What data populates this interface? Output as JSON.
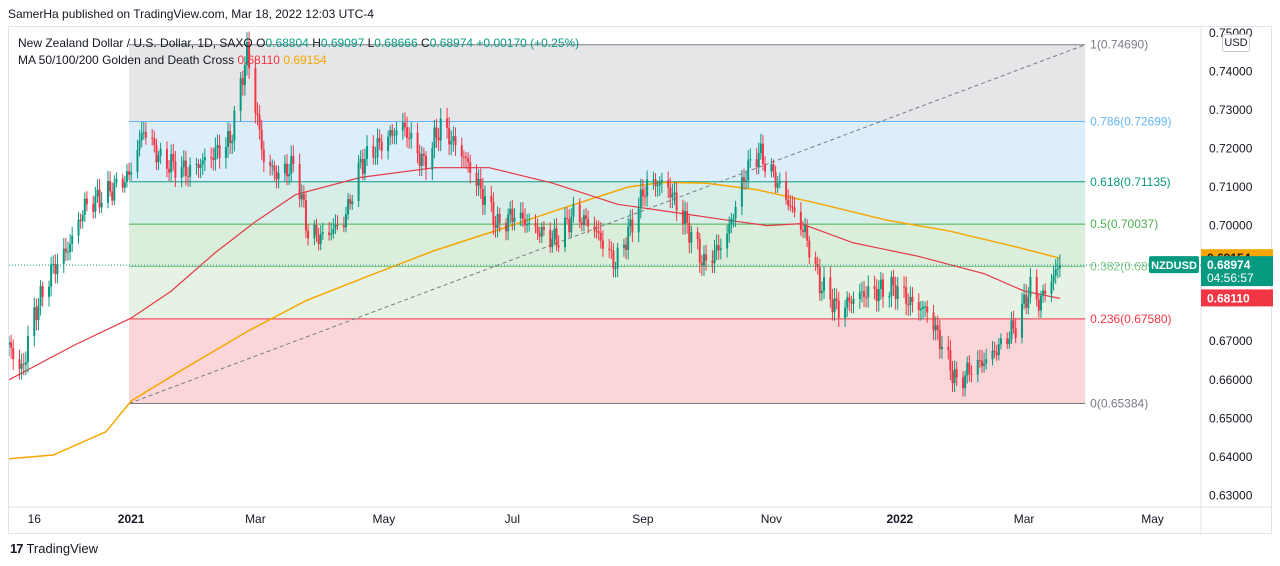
{
  "header": {
    "publisher_line": "SamerHa published on TradingView.com, Mar 18, 2022 12:03 UTC-4"
  },
  "legend": {
    "symbol_title": "New Zealand Dollar / U.S. Dollar, 1D, SAXO",
    "o_label": "O",
    "o": "0.68804",
    "h_label": "H",
    "h": "0.69097",
    "l_label": "L",
    "l": "0.68666",
    "c_label": "C",
    "c": "0.68974",
    "change": "+0.00170 (+0.25%)",
    "ma_title": "MA 50/100/200 Golden and Death Cross",
    "ma_value_1": "0.68110",
    "ma_value_2": "0.69154"
  },
  "currency_button": "USD",
  "footer": {
    "logo_glyph": "17",
    "brand": "TradingView"
  },
  "chart_data": {
    "type": "candlestick",
    "symbol": "NZDUSD",
    "interval": "1D",
    "ylim": [
      0.627,
      0.7515
    ],
    "y_ticks": [
      "0.75000",
      "0.74000",
      "0.73000",
      "0.72000",
      "0.71000",
      "0.70000",
      "0.69000",
      "0.68000",
      "0.67000",
      "0.66000",
      "0.65000",
      "0.64000",
      "0.63000"
    ],
    "x_ticks": [
      {
        "label": "16",
        "date": "2020-11-16"
      },
      {
        "label": "2021",
        "date": "2021-01-01"
      },
      {
        "label": "Mar",
        "date": "2021-03-01"
      },
      {
        "label": "May",
        "date": "2021-05-01"
      },
      {
        "label": "Jul",
        "date": "2021-07-01"
      },
      {
        "label": "Sep",
        "date": "2021-09-01"
      },
      {
        "label": "Nov",
        "date": "2021-11-01"
      },
      {
        "label": "2022",
        "date": "2022-01-01"
      },
      {
        "label": "Mar",
        "date": "2022-03-01"
      },
      {
        "label": "May",
        "date": "2022-05-01"
      }
    ],
    "x_range": [
      "2020-11-04",
      "2022-05-24"
    ],
    "price_path": [
      [
        "2020-11-04",
        0.669
      ],
      [
        "2020-11-10",
        0.662
      ],
      [
        "2020-11-16",
        0.677
      ],
      [
        "2020-11-24",
        0.688
      ],
      [
        "2020-12-02",
        0.694
      ],
      [
        "2020-12-10",
        0.705
      ],
      [
        "2020-12-20",
        0.708
      ],
      [
        "2020-12-31",
        0.713
      ],
      [
        "2021-01-07",
        0.725
      ],
      [
        "2021-01-15",
        0.717
      ],
      [
        "2021-01-28",
        0.714
      ],
      [
        "2021-02-08",
        0.718
      ],
      [
        "2021-02-17",
        0.722
      ],
      [
        "2021-02-25",
        0.745
      ],
      [
        "2021-03-05",
        0.717
      ],
      [
        "2021-03-12",
        0.713
      ],
      [
        "2021-03-20",
        0.716
      ],
      [
        "2021-03-26",
        0.698
      ],
      [
        "2021-04-02",
        0.697
      ],
      [
        "2021-04-12",
        0.701
      ],
      [
        "2021-04-20",
        0.716
      ],
      [
        "2021-05-01",
        0.722
      ],
      [
        "2021-05-10",
        0.726
      ],
      [
        "2021-05-20",
        0.716
      ],
      [
        "2021-05-28",
        0.726
      ],
      [
        "2021-06-08",
        0.718
      ],
      [
        "2021-06-17",
        0.708
      ],
      [
        "2021-06-24",
        0.7
      ],
      [
        "2021-07-02",
        0.703
      ],
      [
        "2021-07-12",
        0.699
      ],
      [
        "2021-07-22",
        0.696
      ],
      [
        "2021-07-30",
        0.703
      ],
      [
        "2021-08-08",
        0.7
      ],
      [
        "2021-08-19",
        0.69
      ],
      [
        "2021-08-25",
        0.698
      ],
      [
        "2021-09-03",
        0.711
      ],
      [
        "2021-09-12",
        0.711
      ],
      [
        "2021-09-22",
        0.7
      ],
      [
        "2021-09-30",
        0.69
      ],
      [
        "2021-10-10",
        0.696
      ],
      [
        "2021-10-20",
        0.714
      ],
      [
        "2021-10-26",
        0.719
      ],
      [
        "2021-11-03",
        0.712
      ],
      [
        "2021-11-10",
        0.705
      ],
      [
        "2021-11-17",
        0.698
      ],
      [
        "2021-11-24",
        0.685
      ],
      [
        "2021-12-03",
        0.678
      ],
      [
        "2021-12-12",
        0.682
      ],
      [
        "2021-12-21",
        0.683
      ],
      [
        "2021-12-30",
        0.684
      ],
      [
        "2022-01-06",
        0.68
      ],
      [
        "2022-01-14",
        0.678
      ],
      [
        "2022-01-21",
        0.669
      ],
      [
        "2022-01-28",
        0.659
      ],
      [
        "2022-02-04",
        0.663
      ],
      [
        "2022-02-11",
        0.665
      ],
      [
        "2022-02-18",
        0.669
      ],
      [
        "2022-02-25",
        0.674
      ],
      [
        "2022-03-04",
        0.684
      ],
      [
        "2022-03-08",
        0.68
      ],
      [
        "2022-03-11",
        0.683
      ],
      [
        "2022-03-18",
        0.68974
      ]
    ],
    "ma_200_path": [
      [
        "2020-11-04",
        0.6395
      ],
      [
        "2020-11-25",
        0.6405
      ],
      [
        "2020-12-20",
        0.6465
      ],
      [
        "2021-01-01",
        0.6545
      ],
      [
        "2021-01-25",
        0.6625
      ],
      [
        "2021-02-25",
        0.6725
      ],
      [
        "2021-03-25",
        0.6805
      ],
      [
        "2021-04-25",
        0.6872
      ],
      [
        "2021-05-25",
        0.6935
      ],
      [
        "2021-06-25",
        0.699
      ],
      [
        "2021-07-25",
        0.7045
      ],
      [
        "2021-08-25",
        0.71
      ],
      [
        "2021-09-10",
        0.7112
      ],
      [
        "2021-10-01",
        0.711
      ],
      [
        "2021-10-25",
        0.7093
      ],
      [
        "2021-11-25",
        0.7055
      ],
      [
        "2021-12-25",
        0.7015
      ],
      [
        "2022-01-25",
        0.6985
      ],
      [
        "2022-02-25",
        0.6945
      ],
      [
        "2022-03-18",
        0.69154
      ]
    ],
    "ma_100_path": [
      [
        "2020-11-04",
        0.66
      ],
      [
        "2020-12-05",
        0.669
      ],
      [
        "2021-01-01",
        0.676
      ],
      [
        "2021-01-20",
        0.683
      ],
      [
        "2021-02-10",
        0.693
      ],
      [
        "2021-03-01",
        0.701
      ],
      [
        "2021-03-20",
        0.708
      ],
      [
        "2021-04-20",
        0.7125
      ],
      [
        "2021-05-25",
        0.715
      ],
      [
        "2021-06-20",
        0.715
      ],
      [
        "2021-07-20",
        0.711
      ],
      [
        "2021-08-20",
        0.7055
      ],
      [
        "2021-09-15",
        0.7035
      ],
      [
        "2021-10-10",
        0.7015
      ],
      [
        "2021-10-30",
        0.7
      ],
      [
        "2021-11-15",
        0.7005
      ],
      [
        "2021-12-10",
        0.6955
      ],
      [
        "2022-01-10",
        0.692
      ],
      [
        "2022-02-10",
        0.6875
      ],
      [
        "2022-03-01",
        0.683
      ],
      [
        "2022-03-18",
        0.6811
      ]
    ],
    "fibonacci": {
      "start": "2020-12-31",
      "end": "2022-03-30",
      "anchor_low": [
        "2020-12-31",
        0.65384
      ],
      "anchor_high": [
        "2022-03-30",
        0.7469
      ],
      "levels": [
        {
          "label": "1(0.74690)",
          "value": 0.7469,
          "color": "#787b86",
          "fill": "#e6e6e8"
        },
        {
          "label": "0.786(0.72699)",
          "value": 0.72699,
          "color": "#64b5f6",
          "fill": "#ddeefb"
        },
        {
          "label": "0.618(0.71135)",
          "value": 0.71135,
          "color": "#089981",
          "fill": "#d7ede8"
        },
        {
          "label": "0.5(0.70037)",
          "value": 0.70037,
          "color": "#4caf50",
          "fill": "#dbeedb"
        },
        {
          "label": "0.382(0.68939)",
          "value": 0.68939,
          "color": "#81c784",
          "fill": "#e6f3e4"
        },
        {
          "label": "0.236(0.67580)",
          "value": 0.6758,
          "color": "#f23645",
          "fill": "#fad6d9"
        },
        {
          "label": "0(0.65384)",
          "value": 0.65384,
          "color": "#787b86",
          "fill": null
        }
      ]
    },
    "price_labels": [
      {
        "text": "NZDUSD",
        "value": 0.68974,
        "color": "#089981",
        "kind": "symbol"
      },
      {
        "text": "0.69154",
        "value": 0.69154,
        "color": "#f7a600",
        "kind": "ma"
      },
      {
        "text": "0.68974",
        "value": 0.68974,
        "color": "#089981",
        "kind": "last",
        "countdown": "04:56:57"
      },
      {
        "text": "0.68110",
        "value": 0.6811,
        "color": "#f23645",
        "kind": "ma"
      }
    ],
    "last_price": 0.68974,
    "colors": {
      "up": "#089981",
      "down": "#f23645",
      "ma_200": "#f7a600",
      "ma_100": "#e53947"
    }
  }
}
